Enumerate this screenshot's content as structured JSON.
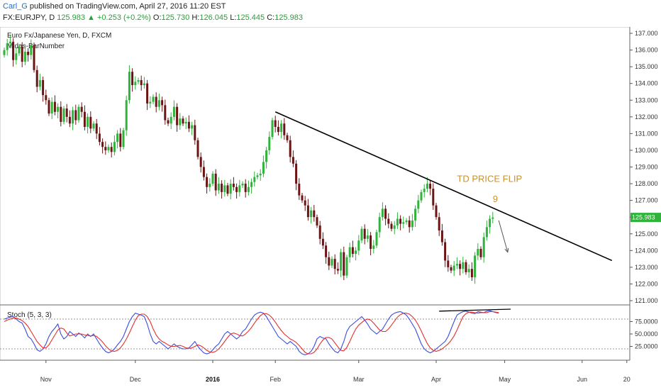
{
  "header": {
    "user": "Carl_G",
    "published_text": "published on TradingView.com, April 27, 2016 11:20 EST",
    "symbol": "FX:EURJPY, D",
    "last": "125.983",
    "change": "+0.253 (+0.2%)",
    "open_label": "O:",
    "open": "125.730",
    "high_label": "H:",
    "high": "126.045",
    "low_label": "L:",
    "low": "125.445",
    "close_label": "C:",
    "close": "125.983"
  },
  "colors": {
    "up": "#2fb33a",
    "down": "#6b1414",
    "trend": "#000000",
    "stoch_k": "#3b4ae0",
    "stoch_d": "#e23030",
    "annotation": "#c8922e",
    "last_price_bg": "#2fb33a"
  },
  "chart_data": [
    {
      "type": "candlestick",
      "title": "Euro Fx/Japanese Yen, D, FXCM",
      "indicator": "Midas-BarNumber",
      "ylim": [
        121.0,
        137.0
      ],
      "yticks": [
        "121.000",
        "122.000",
        "123.000",
        "124.000",
        "125.000",
        "126.000",
        "127.000",
        "128.000",
        "129.000",
        "130.000",
        "131.000",
        "132.000",
        "133.000",
        "134.000",
        "135.000",
        "136.000",
        "137.000"
      ],
      "last_price_label": "125.983",
      "xticks": [
        {
          "bar": 14,
          "label": "Nov",
          "bold": false
        },
        {
          "bar": 44,
          "label": "Dec",
          "bold": false
        },
        {
          "bar": 70,
          "label": "2016",
          "bold": true
        },
        {
          "bar": 91,
          "label": "Feb",
          "bold": false
        },
        {
          "bar": 119,
          "label": "Mar",
          "bold": false
        },
        {
          "bar": 145,
          "label": "Apr",
          "bold": false
        },
        {
          "bar": 168,
          "label": "May",
          "bold": false
        },
        {
          "bar": 194,
          "label": "Jun",
          "bold": false
        },
        {
          "bar": 209,
          "label": "20",
          "bold": false
        }
      ],
      "close": [
        136.0,
        136.4,
        136.5,
        135.4,
        135.8,
        136.2,
        135.3,
        135.9,
        135.7,
        136.3,
        134.8,
        133.8,
        134.2,
        133.3,
        133.0,
        132.2,
        132.9,
        132.3,
        132.6,
        131.7,
        132.5,
        132.0,
        131.6,
        132.4,
        131.8,
        132.6,
        132.3,
        131.4,
        132.0,
        131.3,
        131.6,
        131.0,
        130.5,
        130.2,
        130.0,
        130.2,
        129.9,
        130.5,
        131.0,
        130.2,
        131.2,
        133.0,
        134.7,
        133.9,
        134.1,
        134.2,
        133.9,
        134.0,
        132.8,
        132.9,
        133.2,
        132.6,
        133.0,
        132.7,
        131.8,
        131.6,
        132.0,
        132.6,
        131.5,
        131.9,
        131.6,
        131.7,
        131.3,
        131.5,
        130.6,
        129.6,
        129.0,
        128.4,
        127.8,
        128.0,
        128.6,
        127.6,
        128.0,
        127.5,
        127.9,
        127.4,
        128.0,
        127.8,
        127.5,
        127.9,
        128.0,
        127.5,
        127.8,
        128.1,
        128.4,
        128.5,
        128.6,
        129.3,
        130.0,
        130.8,
        131.8,
        131.4,
        131.1,
        131.6,
        130.9,
        130.6,
        129.6,
        129.2,
        128.0,
        127.3,
        127.0,
        126.7,
        126.0,
        126.4,
        126.0,
        125.5,
        124.7,
        124.3,
        123.6,
        123.1,
        123.5,
        122.9,
        122.8,
        123.9,
        122.5,
        123.6,
        124.2,
        123.8,
        124.0,
        124.6,
        125.3,
        124.7,
        124.9,
        124.1,
        124.3,
        125.1,
        126.0,
        126.5,
        125.9,
        125.6,
        125.3,
        125.5,
        125.9,
        125.6,
        125.7,
        125.8,
        125.4,
        125.8,
        126.5,
        127.0,
        127.5,
        127.7,
        128.0,
        127.7,
        126.7,
        126.0,
        125.2,
        124.5,
        123.4,
        123.0,
        122.8,
        123.1,
        123.2,
        122.9,
        123.3,
        122.7,
        122.9,
        122.4,
        123.7,
        124.1,
        123.6,
        124.8,
        125.4,
        125.9,
        125.98
      ],
      "trendline": {
        "from": {
          "bar": 91,
          "price": 132.3
        },
        "to": {
          "bar": 204,
          "price": 123.4
        }
      },
      "arrow": {
        "from": {
          "bar": 166,
          "price": 125.8
        },
        "to": {
          "bar": 169,
          "price": 123.9
        }
      },
      "annotations": [
        {
          "text": "TD PRICE FLIP",
          "bar": 152,
          "price": 128.1
        },
        {
          "text": "9",
          "bar": 164,
          "price": 126.9
        }
      ]
    },
    {
      "type": "line",
      "title": "Stoch (5, 3, 3)",
      "ylim": [
        0,
        100
      ],
      "yticks": [
        "25.0000",
        "50.0000",
        "75.0000"
      ],
      "bands": [
        20,
        80
      ],
      "series": [
        {
          "name": "%K",
          "values": [
            80,
            82,
            84,
            85,
            80,
            75,
            72,
            60,
            45,
            40,
            30,
            18,
            15,
            20,
            30,
            45,
            55,
            62,
            70,
            50,
            40,
            45,
            55,
            50,
            45,
            52,
            48,
            42,
            50,
            45,
            50,
            40,
            30,
            22,
            15,
            12,
            15,
            20,
            28,
            35,
            45,
            60,
            75,
            85,
            92,
            90,
            88,
            85,
            70,
            50,
            35,
            30,
            35,
            30,
            25,
            20,
            25,
            30,
            25,
            22,
            20,
            20,
            22,
            28,
            35,
            25,
            18,
            12,
            10,
            12,
            18,
            25,
            30,
            40,
            50,
            55,
            50,
            45,
            40,
            45,
            55,
            60,
            70,
            80,
            88,
            92,
            94,
            92,
            85,
            75,
            65,
            55,
            45,
            40,
            35,
            30,
            35,
            30,
            25,
            15,
            10,
            8,
            10,
            15,
            25,
            40,
            45,
            42,
            40,
            30,
            22,
            15,
            12,
            20,
            35,
            55,
            65,
            70,
            75,
            80,
            85,
            78,
            70,
            60,
            55,
            50,
            55,
            60,
            70,
            80,
            88,
            92,
            94,
            95,
            92,
            88,
            80,
            70,
            60,
            45,
            30,
            20,
            15,
            12,
            15,
            20,
            25,
            30,
            35,
            45,
            60,
            75,
            88,
            92,
            95,
            96,
            94,
            92,
            91,
            95,
            94,
            93,
            96,
            97,
            95,
            93,
            92
          ]
        },
        {
          "name": "%D",
          "values": [
            75,
            78,
            80,
            82,
            82,
            80,
            77,
            72,
            65,
            55,
            45,
            35,
            28,
            22,
            22,
            28,
            38,
            48,
            58,
            62,
            60,
            52,
            46,
            48,
            50,
            50,
            50,
            48,
            47,
            46,
            47,
            45,
            40,
            34,
            26,
            20,
            16,
            15,
            17,
            22,
            30,
            40,
            52,
            65,
            78,
            87,
            90,
            90,
            85,
            75,
            60,
            48,
            40,
            35,
            32,
            28,
            25,
            25,
            26,
            27,
            25,
            22,
            21,
            22,
            25,
            28,
            26,
            22,
            17,
            14,
            13,
            15,
            20,
            27,
            35,
            43,
            50,
            52,
            50,
            47,
            46,
            50,
            56,
            63,
            72,
            80,
            87,
            91,
            91,
            88,
            82,
            74,
            65,
            57,
            50,
            45,
            40,
            37,
            33,
            27,
            20,
            13,
            10,
            10,
            13,
            20,
            30,
            38,
            43,
            43,
            40,
            32,
            24,
            17,
            16,
            23,
            35,
            48,
            60,
            68,
            73,
            78,
            80,
            78,
            72,
            65,
            58,
            55,
            55,
            60,
            68,
            76,
            84,
            89,
            92,
            92,
            90,
            85,
            78,
            68,
            56,
            43,
            31,
            22,
            17,
            15,
            17,
            20,
            25,
            30,
            37,
            46,
            58,
            72,
            85,
            91,
            94,
            94,
            93,
            92,
            93,
            93,
            93,
            95,
            95,
            94,
            93
          ]
        }
      ],
      "divergence_line": {
        "from": {
          "bar": 146,
          "value": 96
        },
        "to": {
          "bar": 170,
          "value": 100
        }
      }
    }
  ]
}
